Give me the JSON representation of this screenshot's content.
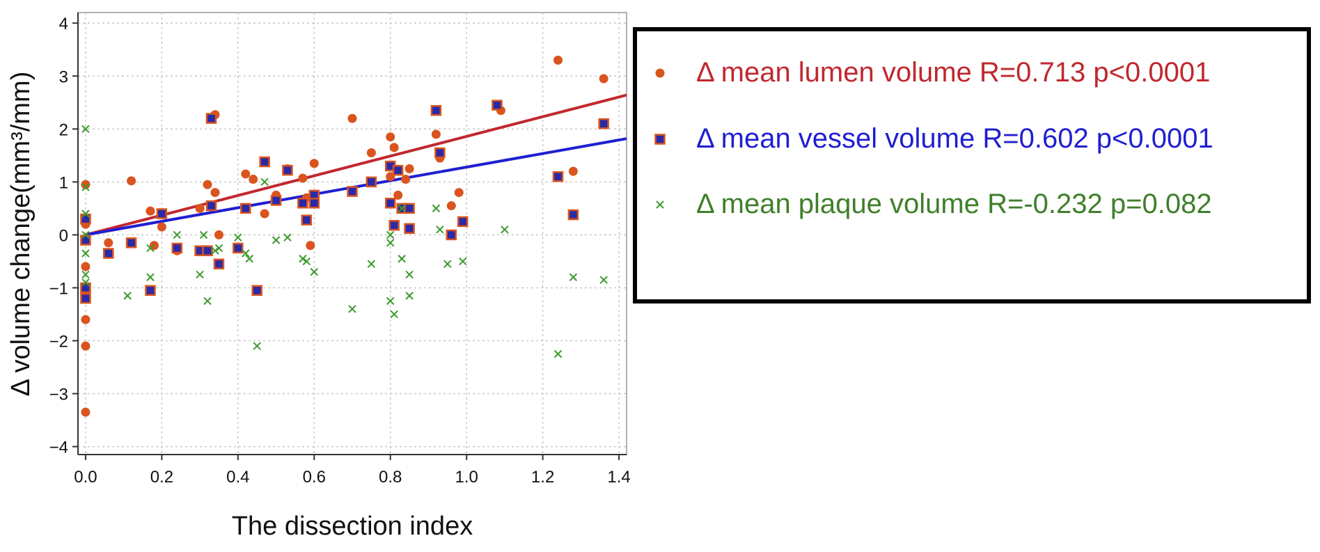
{
  "chart_data": {
    "type": "scatter",
    "xlabel": "The dissection index",
    "ylabel": "Δ volume change(mm³/mm)",
    "xlim": [
      -0.02,
      1.42
    ],
    "ylim": [
      -4.15,
      4.2
    ],
    "x_ticks": [
      "0.0",
      "0.2",
      "0.4",
      "0.6",
      "0.8",
      "1.0",
      "1.2",
      "1.4"
    ],
    "x_tick_values": [
      0,
      0.2,
      0.4,
      0.6,
      0.8,
      1.0,
      1.2,
      1.4
    ],
    "y_ticks": [
      "4",
      "3",
      "2",
      "1",
      "0",
      "−1",
      "−2",
      "−3",
      "−4"
    ],
    "y_tick_values": [
      4,
      3,
      2,
      1,
      0,
      -1,
      -2,
      -3,
      -4
    ],
    "grid": true,
    "legend_position": "right",
    "series": [
      {
        "name": "Δ mean lumen volume R=0.713 p<0.0001",
        "marker": "circle",
        "color": "#d9541e",
        "text_color": "#c0282e",
        "fit": {
          "slope": 1.86,
          "intercept": 0.0,
          "color": "#c0282e"
        },
        "points": [
          [
            0.0,
            -3.35
          ],
          [
            0.0,
            -2.1
          ],
          [
            0.0,
            -1.6
          ],
          [
            0.0,
            -1.2
          ],
          [
            0.0,
            -0.6
          ],
          [
            0.0,
            -0.1
          ],
          [
            0.0,
            0.2
          ],
          [
            0.0,
            0.95
          ],
          [
            0.06,
            -0.15
          ],
          [
            0.12,
            1.02
          ],
          [
            0.17,
            0.45
          ],
          [
            0.18,
            -0.2
          ],
          [
            0.2,
            0.15
          ],
          [
            0.24,
            -0.3
          ],
          [
            0.3,
            0.5
          ],
          [
            0.32,
            0.95
          ],
          [
            0.33,
            2.2
          ],
          [
            0.34,
            2.27
          ],
          [
            0.34,
            0.8
          ],
          [
            0.35,
            0.0
          ],
          [
            0.42,
            1.15
          ],
          [
            0.44,
            1.05
          ],
          [
            0.47,
            0.4
          ],
          [
            0.5,
            0.75
          ],
          [
            0.53,
            1.25
          ],
          [
            0.57,
            1.07
          ],
          [
            0.58,
            0.7
          ],
          [
            0.59,
            -0.2
          ],
          [
            0.6,
            1.35
          ],
          [
            0.7,
            2.2
          ],
          [
            0.75,
            1.55
          ],
          [
            0.8,
            1.85
          ],
          [
            0.81,
            1.65
          ],
          [
            0.8,
            1.1
          ],
          [
            0.82,
            0.75
          ],
          [
            0.84,
            1.05
          ],
          [
            0.85,
            1.25
          ],
          [
            0.92,
            1.9
          ],
          [
            0.93,
            1.45
          ],
          [
            0.96,
            0.55
          ],
          [
            0.98,
            0.8
          ],
          [
            1.09,
            2.35
          ],
          [
            1.24,
            3.3
          ],
          [
            1.28,
            1.2
          ],
          [
            1.36,
            2.95
          ]
        ]
      },
      {
        "name": "Δ mean vessel volume R=0.602 p<0.0001",
        "marker": "square",
        "color": "#2a2aa8",
        "border": "#d9541e",
        "text_color": "#1f1fd0",
        "fit": {
          "slope": 1.28,
          "intercept": 0.0,
          "color": "#1f1fd0"
        },
        "points": [
          [
            0.0,
            -1.2
          ],
          [
            0.0,
            -1.0
          ],
          [
            0.0,
            -0.1
          ],
          [
            0.0,
            0.3
          ],
          [
            0.06,
            -0.35
          ],
          [
            0.12,
            -0.15
          ],
          [
            0.17,
            -1.05
          ],
          [
            0.2,
            0.4
          ],
          [
            0.24,
            -0.25
          ],
          [
            0.3,
            -0.3
          ],
          [
            0.32,
            -0.3
          ],
          [
            0.33,
            2.2
          ],
          [
            0.33,
            0.55
          ],
          [
            0.35,
            -0.55
          ],
          [
            0.4,
            -0.25
          ],
          [
            0.42,
            0.5
          ],
          [
            0.45,
            -1.05
          ],
          [
            0.47,
            1.38
          ],
          [
            0.5,
            0.65
          ],
          [
            0.53,
            1.22
          ],
          [
            0.57,
            0.6
          ],
          [
            0.58,
            0.28
          ],
          [
            0.6,
            0.75
          ],
          [
            0.6,
            0.6
          ],
          [
            0.7,
            0.82
          ],
          [
            0.75,
            1.0
          ],
          [
            0.8,
            1.3
          ],
          [
            0.8,
            0.6
          ],
          [
            0.81,
            0.18
          ],
          [
            0.82,
            1.22
          ],
          [
            0.83,
            0.5
          ],
          [
            0.85,
            0.12
          ],
          [
            0.85,
            0.5
          ],
          [
            0.92,
            2.35
          ],
          [
            0.93,
            1.55
          ],
          [
            0.96,
            0.0
          ],
          [
            0.99,
            0.25
          ],
          [
            1.08,
            2.45
          ],
          [
            1.24,
            1.1
          ],
          [
            1.28,
            0.38
          ],
          [
            1.36,
            2.1
          ]
        ]
      },
      {
        "name": "Δ mean plaque volume R=-0.232 p=0.082",
        "marker": "x",
        "color": "#3a9a2a",
        "text_color": "#3f7f2a",
        "points": [
          [
            0.0,
            2.0
          ],
          [
            0.0,
            0.9
          ],
          [
            0.0,
            0.4
          ],
          [
            0.0,
            0.0
          ],
          [
            0.0,
            -0.35
          ],
          [
            0.0,
            -0.75
          ],
          [
            0.0,
            -0.9
          ],
          [
            0.11,
            -1.15
          ],
          [
            0.17,
            -0.8
          ],
          [
            0.17,
            -0.25
          ],
          [
            0.24,
            0.0
          ],
          [
            0.3,
            -0.75
          ],
          [
            0.31,
            0.0
          ],
          [
            0.32,
            -1.25
          ],
          [
            0.34,
            -0.3
          ],
          [
            0.35,
            -0.25
          ],
          [
            0.4,
            -0.05
          ],
          [
            0.42,
            -0.35
          ],
          [
            0.43,
            -0.45
          ],
          [
            0.45,
            -2.1
          ],
          [
            0.47,
            1.0
          ],
          [
            0.5,
            -0.1
          ],
          [
            0.53,
            -0.05
          ],
          [
            0.57,
            -0.45
          ],
          [
            0.58,
            -0.5
          ],
          [
            0.6,
            -0.7
          ],
          [
            0.7,
            -1.4
          ],
          [
            0.75,
            -0.55
          ],
          [
            0.8,
            -1.25
          ],
          [
            0.8,
            -0.15
          ],
          [
            0.8,
            0.0
          ],
          [
            0.81,
            -1.5
          ],
          [
            0.83,
            -0.45
          ],
          [
            0.83,
            0.5
          ],
          [
            0.85,
            -0.75
          ],
          [
            0.85,
            -1.15
          ],
          [
            0.92,
            0.5
          ],
          [
            0.93,
            0.1
          ],
          [
            0.95,
            -0.55
          ],
          [
            0.99,
            -0.5
          ],
          [
            1.1,
            0.1
          ],
          [
            1.24,
            -2.25
          ],
          [
            1.28,
            -0.8
          ],
          [
            1.36,
            -0.85
          ]
        ]
      }
    ]
  }
}
